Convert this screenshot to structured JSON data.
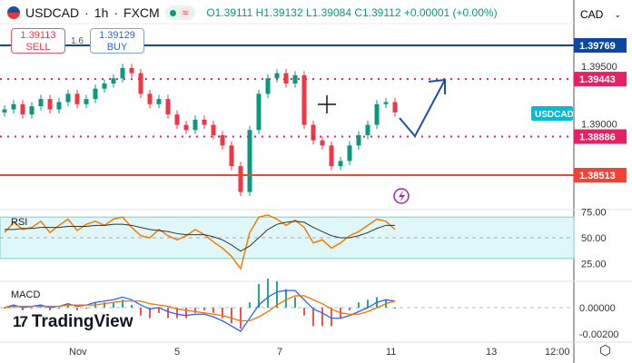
{
  "header": {
    "symbol": "USDCAD",
    "interval": "1h",
    "exchange": "FXCM",
    "sep": "·",
    "ohlc": "O1.39111  H1.39132  L1.39084  C1.39112  +0.00001 (+0.00%)"
  },
  "trade": {
    "sell_price": "1.39113",
    "sell_label": "SELL",
    "spread": "1.6",
    "buy_price": "1.39129",
    "buy_label": "BUY"
  },
  "currency": "CAD",
  "brand": "TradingView",
  "colors": {
    "up": "#089981",
    "down": "#f23645",
    "blue": "#0d47a1",
    "pink": "#e91e63",
    "red": "#f44336",
    "rsi": "#f57c00",
    "macd": "#2962ff",
    "signal": "#ff6d00"
  },
  "chart_data": {
    "type": "candlestick",
    "price_axis": {
      "ticks": [
        "1.39500",
        "1.39000"
      ],
      "range": [
        1.3815,
        1.3985
      ]
    },
    "levels": [
      {
        "value": "1.39769",
        "style": "solid",
        "color": "#0d47a1"
      },
      {
        "value": "1.39443",
        "style": "dotted",
        "color": "#e91e63"
      },
      {
        "value": "1.38886",
        "style": "dotted",
        "color": "#e91e63"
      },
      {
        "value": "1.38513",
        "style": "solid",
        "color": "#f44336"
      }
    ],
    "symbol_label": "USDCAD",
    "closes": [
      1.3915,
      1.392,
      1.391,
      1.3918,
      1.3925,
      1.3915,
      1.3922,
      1.393,
      1.392,
      1.3925,
      1.3935,
      1.394,
      1.3945,
      1.3955,
      1.395,
      1.393,
      1.392,
      1.3925,
      1.391,
      1.39,
      1.3895,
      1.3905,
      1.39,
      1.389,
      1.388,
      1.386,
      1.3835,
      1.3895,
      1.393,
      1.3945,
      1.395,
      1.394,
      1.3948,
      1.39,
      1.3885,
      1.388,
      1.386,
      1.3865,
      1.388,
      1.389,
      1.39,
      1.392,
      1.3922,
      1.3912
    ],
    "x_ticks": [
      "Nov",
      "5",
      "7",
      "11",
      "13",
      "12:00"
    ],
    "rsi": {
      "label": "RSI",
      "ticks": [
        "75.00",
        "50.00",
        "25.00"
      ],
      "values": [
        55,
        65,
        58,
        60,
        66,
        55,
        62,
        68,
        57,
        63,
        66,
        62,
        68,
        70,
        60,
        52,
        50,
        58,
        52,
        48,
        52,
        58,
        53,
        46,
        40,
        32,
        20,
        55,
        70,
        72,
        68,
        62,
        67,
        60,
        45,
        48,
        40,
        45,
        52,
        56,
        62,
        68,
        66,
        58
      ],
      "ma": [
        58,
        58,
        59,
        59,
        60,
        60,
        60,
        61,
        61,
        61,
        62,
        62,
        63,
        63,
        62,
        60,
        58,
        57,
        56,
        54,
        53,
        53,
        53,
        51,
        48,
        43,
        37,
        42,
        50,
        58,
        63,
        65,
        66,
        65,
        60,
        56,
        52,
        50,
        50,
        52,
        55,
        59,
        62,
        62
      ]
    },
    "macd": {
      "label": "MACD",
      "ticks": [
        "0.00000",
        "-0.00200"
      ],
      "macd": [
        0,
        0.0002,
        0,
        0.0001,
        0.0002,
        0,
        0.0001,
        0.0003,
        0.0001,
        0.0002,
        0.0004,
        0.0005,
        0.0006,
        0.0008,
        0.0006,
        0.0002,
        -0.0001,
        0,
        -0.0003,
        -0.0005,
        -0.0006,
        -0.0005,
        -0.0005,
        -0.0007,
        -0.001,
        -0.0014,
        -0.0018,
        -0.0008,
        0.0002,
        0.0008,
        0.0012,
        0.0013,
        0.0013,
        0.0006,
        -0.0001,
        -0.0004,
        -0.0008,
        -0.0008,
        -0.0006,
        -0.0003,
        0,
        0.0004,
        0.0006,
        0.0005
      ],
      "signal": [
        0,
        0.0001,
        0.0001,
        0.0001,
        0.0001,
        0.0001,
        0.0001,
        0.0002,
        0.0002,
        0.0002,
        0.0002,
        0.0003,
        0.0004,
        0.0005,
        0.0005,
        0.0005,
        0.0003,
        0.0002,
        0.0001,
        -0.0001,
        -0.0002,
        -0.0003,
        -0.0004,
        -0.0005,
        -0.0006,
        -0.0008,
        -0.001,
        -0.001,
        -0.0007,
        -0.0003,
        0.0002,
        0.0006,
        0.0009,
        0.0009,
        0.0006,
        0.0003,
        -0.0001,
        -0.0004,
        -0.0005,
        -0.0005,
        -0.0003,
        0,
        0.0003,
        0.0005
      ]
    }
  }
}
